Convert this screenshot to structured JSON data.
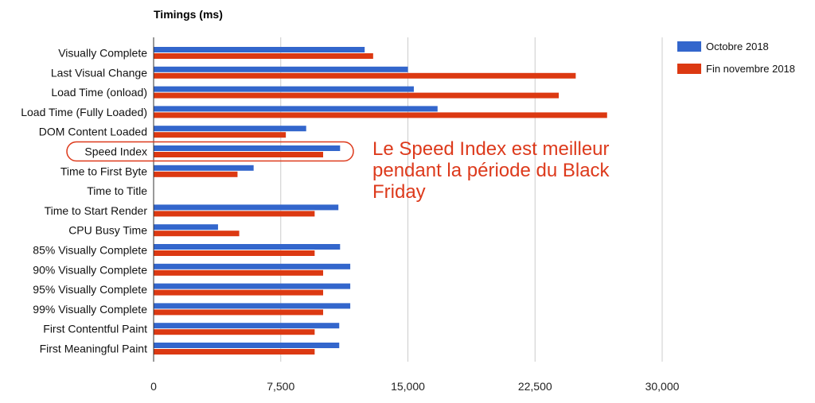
{
  "chart_data": {
    "type": "bar",
    "orientation": "horizontal",
    "title": "Timings (ms)",
    "categories": [
      "Visually Complete",
      "Last Visual Change",
      "Load Time (onload)",
      "Load Time (Fully Loaded)",
      "DOM Content Loaded",
      "Speed Index",
      "Time to First Byte",
      "Time to Title",
      "Time to Start Render",
      "CPU Busy Time",
      "85% Visually Complete",
      "90% Visually Complete",
      "95% Visually Complete",
      "99% Visually Complete",
      "First Contentful Paint",
      "First Meaningful Paint"
    ],
    "series": [
      {
        "name": "Octobre 2018",
        "color": "#3366cc",
        "values": [
          12450,
          15000,
          15350,
          16750,
          9000,
          11000,
          5900,
          0,
          10900,
          3800,
          11000,
          11600,
          11600,
          11600,
          10950,
          10950
        ]
      },
      {
        "name": "Fin novembre 2018",
        "color": "#dc3912",
        "values": [
          12950,
          24900,
          23900,
          26750,
          7800,
          10000,
          4950,
          0,
          9500,
          5050,
          9500,
          10000,
          10000,
          10000,
          9500,
          9500
        ]
      }
    ],
    "xlim": [
      0,
      30000
    ],
    "x_ticks": [
      0,
      7500,
      15000,
      22500,
      30000
    ],
    "x_tick_labels": [
      "0",
      "7,500",
      "15,000",
      "22,500",
      "30,000"
    ],
    "grid": true,
    "legend_position": "right",
    "highlighted_category": "Speed Index",
    "annotation": {
      "lines": [
        "Le Speed Index est meilleur",
        "pendant la période du Black",
        "Friday"
      ],
      "color": "#dd3a1c"
    }
  }
}
